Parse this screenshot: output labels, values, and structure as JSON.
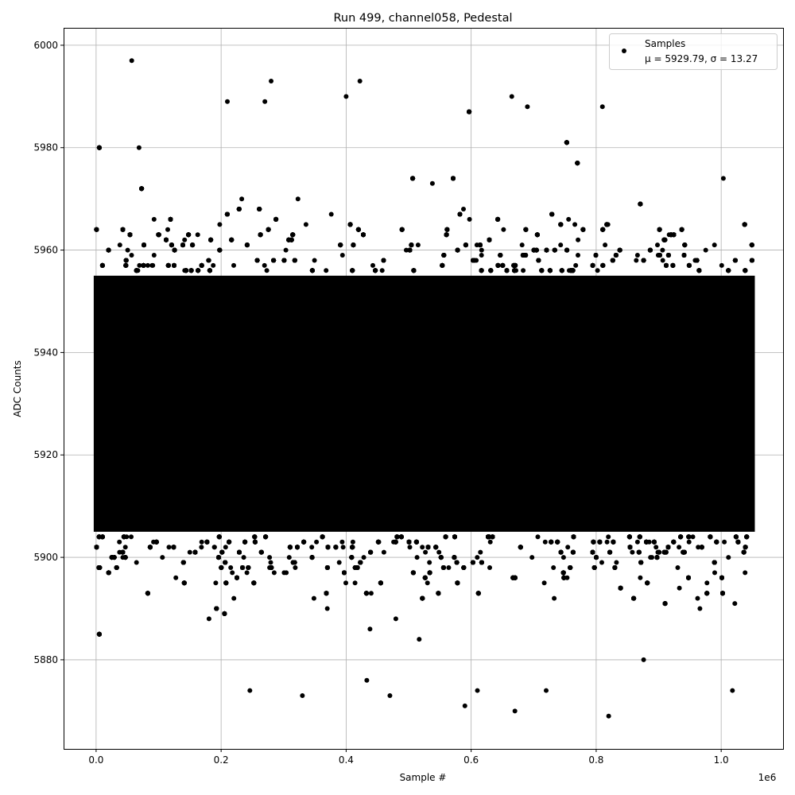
{
  "chart_data": {
    "type": "scatter",
    "title": "Run 499, channel058, Pedestal",
    "xlabel": "Sample #",
    "ylabel": "ADC Counts",
    "x_offset_label": "1e6",
    "xlim": [
      -0.052,
      1.099
    ],
    "ylim": [
      5862.6,
      6003.4
    ],
    "x_scale": 1000000,
    "xticks": [
      0.0,
      0.2,
      0.4,
      0.6,
      0.8,
      1.0
    ],
    "xtick_labels": [
      "0.0",
      "0.2",
      "0.4",
      "0.6",
      "0.8",
      "1.0"
    ],
    "yticks": [
      5880,
      5900,
      5920,
      5940,
      5960,
      5980,
      6000
    ],
    "ytick_labels": [
      "5880",
      "5900",
      "5920",
      "5940",
      "5960",
      "5980",
      "6000"
    ],
    "grid": true,
    "legend_placement": "upper right",
    "marker_color": "#000000",
    "series": [
      {
        "name": "Samples",
        "stats_label": "μ = 5929.79, σ = 13.27",
        "mean": 5929.79,
        "std": 13.27,
        "x_range": [
          0.0,
          1.05
        ],
        "dense_band": [
          5905,
          5955
        ],
        "outliers": [
          {
            "x": 0.057,
            "y": 5997
          },
          {
            "x": 0.28,
            "y": 5993
          },
          {
            "x": 0.4,
            "y": 5990
          },
          {
            "x": 0.422,
            "y": 5993
          },
          {
            "x": 0.665,
            "y": 5990
          },
          {
            "x": 0.21,
            "y": 5989
          },
          {
            "x": 0.27,
            "y": 5989
          },
          {
            "x": 0.81,
            "y": 5988
          },
          {
            "x": 0.69,
            "y": 5988
          },
          {
            "x": 0.82,
            "y": 5869
          },
          {
            "x": 0.67,
            "y": 5870
          },
          {
            "x": 0.59,
            "y": 5871
          },
          {
            "x": 0.33,
            "y": 5873
          },
          {
            "x": 0.47,
            "y": 5873
          },
          {
            "x": 0.246,
            "y": 5874
          },
          {
            "x": 1.018,
            "y": 5874
          },
          {
            "x": 0.72,
            "y": 5874
          },
          {
            "x": 0.61,
            "y": 5874
          }
        ]
      }
    ]
  }
}
